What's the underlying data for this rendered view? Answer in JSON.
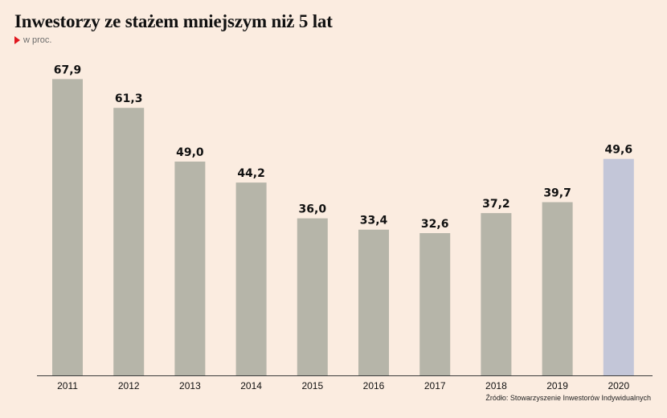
{
  "header": {
    "title": "Inwestorzy ze stażem mniejszym niż 5 lat",
    "subtitle": "w proc."
  },
  "footer": {
    "source": "Źródło: Stowarzyszenie Inwestorów Indywidualnych"
  },
  "colors": {
    "background": "#fbece0",
    "bar": "#b6b5a9",
    "highlight_bar": "#c3c6d8",
    "marker": "#e0171f"
  },
  "chart_data": {
    "type": "bar",
    "title": "Inwestorzy ze stażem mniejszym niż 5 lat",
    "subtitle": "w proc.",
    "categories": [
      "2011",
      "2012",
      "2013",
      "2014",
      "2015",
      "2016",
      "2017",
      "2018",
      "2019",
      "2020"
    ],
    "values": [
      67.9,
      61.3,
      49.0,
      44.2,
      36.0,
      33.4,
      32.6,
      37.2,
      39.7,
      49.6
    ],
    "value_labels": [
      "67,9",
      "61,3",
      "49,0",
      "44,2",
      "36,0",
      "33,4",
      "32,6",
      "37,2",
      "39,7",
      "49,6"
    ],
    "highlighted_category": "2020",
    "ylim": [
      0,
      70
    ],
    "grid": false,
    "legend": "none",
    "xlabel": "",
    "ylabel": ""
  }
}
